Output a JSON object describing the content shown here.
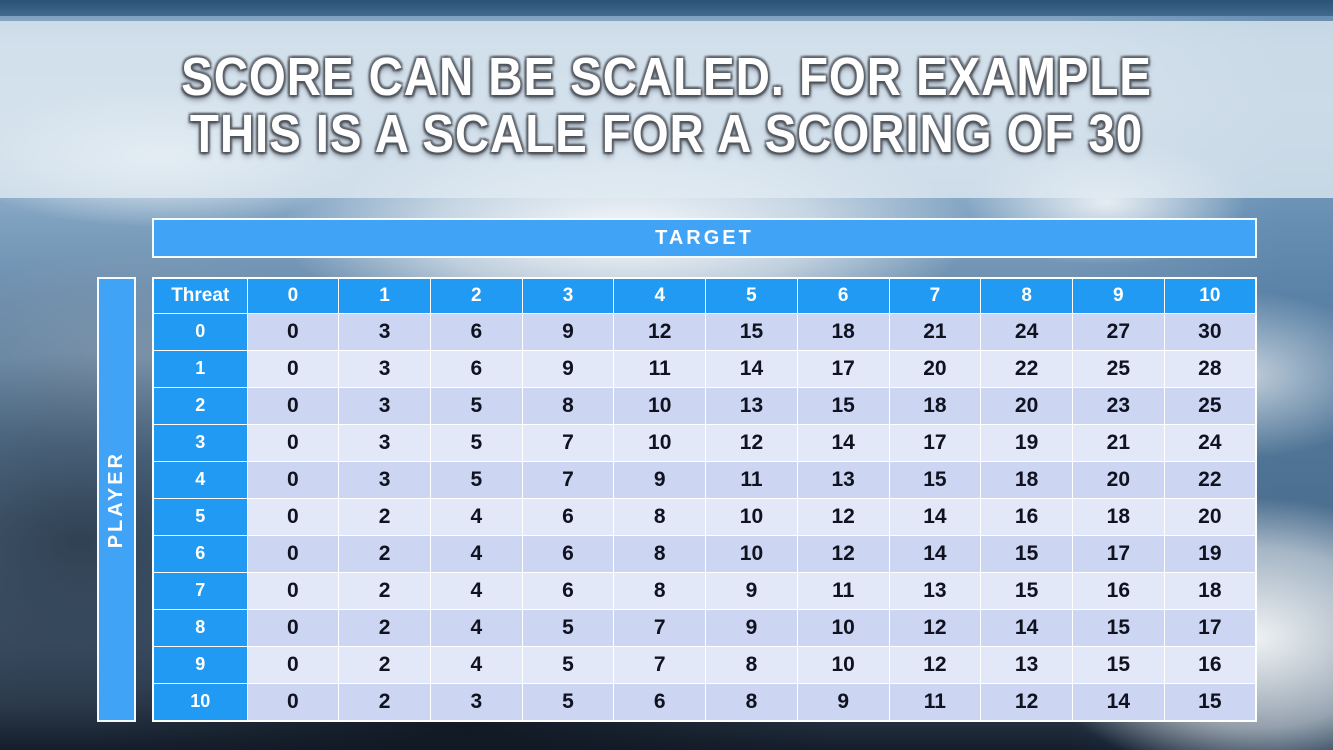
{
  "slide": {
    "title_line1": "SCORE CAN BE SCALED. FOR EXAMPLE",
    "title_line2": "THIS IS A SCALE FOR A SCORING OF 30"
  },
  "table": {
    "target_label": "TARGET",
    "player_label": "PLAYER",
    "corner_label": "Threat",
    "column_headers": [
      "0",
      "1",
      "2",
      "3",
      "4",
      "5",
      "6",
      "7",
      "8",
      "9",
      "10"
    ],
    "rows": [
      {
        "header": "0",
        "values": [
          0,
          3,
          6,
          9,
          12,
          15,
          18,
          21,
          24,
          27,
          30
        ]
      },
      {
        "header": "1",
        "values": [
          0,
          3,
          6,
          9,
          11,
          14,
          17,
          20,
          22,
          25,
          28
        ]
      },
      {
        "header": "2",
        "values": [
          0,
          3,
          5,
          8,
          10,
          13,
          15,
          18,
          20,
          23,
          25
        ]
      },
      {
        "header": "3",
        "values": [
          0,
          3,
          5,
          7,
          10,
          12,
          14,
          17,
          19,
          21,
          24
        ]
      },
      {
        "header": "4",
        "values": [
          0,
          3,
          5,
          7,
          9,
          11,
          13,
          15,
          18,
          20,
          22
        ]
      },
      {
        "header": "5",
        "values": [
          0,
          2,
          4,
          6,
          8,
          10,
          12,
          14,
          16,
          18,
          20
        ]
      },
      {
        "header": "6",
        "values": [
          0,
          2,
          4,
          6,
          8,
          10,
          12,
          14,
          15,
          17,
          19
        ]
      },
      {
        "header": "7",
        "values": [
          0,
          2,
          4,
          6,
          8,
          9,
          11,
          13,
          15,
          16,
          18
        ]
      },
      {
        "header": "8",
        "values": [
          0,
          2,
          4,
          5,
          7,
          9,
          10,
          12,
          14,
          15,
          17
        ]
      },
      {
        "header": "9",
        "values": [
          0,
          2,
          4,
          5,
          7,
          8,
          10,
          12,
          13,
          15,
          16
        ]
      },
      {
        "header": "10",
        "values": [
          0,
          2,
          3,
          5,
          6,
          8,
          9,
          11,
          12,
          14,
          15
        ]
      }
    ]
  },
  "colors": {
    "header_blue": "#219af3",
    "bar_blue": "#41a3f5",
    "row_dark": "#ccd6f2",
    "row_light": "#e3e8f9",
    "top_strip": "#2c5276",
    "cell_text": "#10131f",
    "title_text": "#ffffff"
  }
}
